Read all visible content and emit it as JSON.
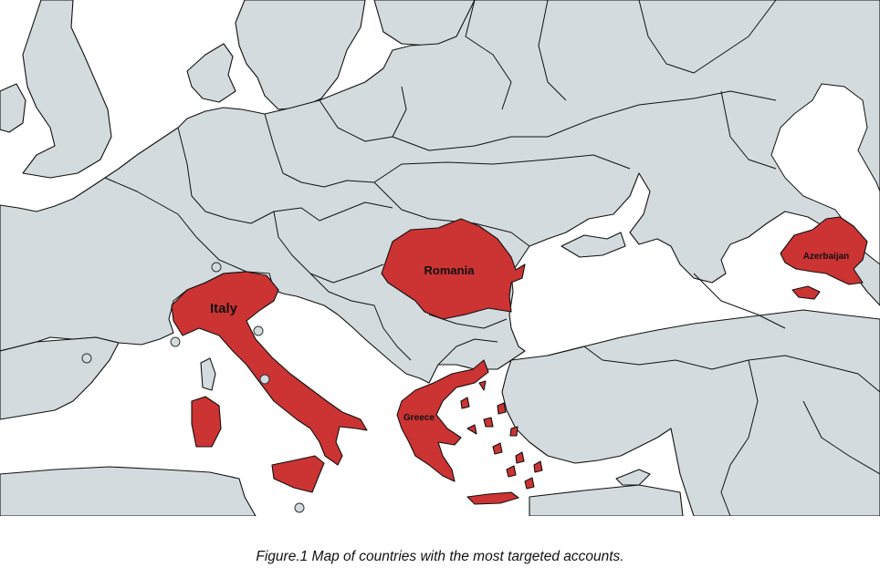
{
  "colors": {
    "land": "#d3dbdf",
    "sea": "#ffffff",
    "highlight": "#cc3333",
    "border": "#111111"
  },
  "map": {
    "highlighted_countries": [
      {
        "id": "italy",
        "label": "Italy"
      },
      {
        "id": "romania",
        "label": "Romania"
      },
      {
        "id": "greece",
        "label": "Greece"
      },
      {
        "id": "azerbaijan",
        "label": "Azerbaijan"
      }
    ]
  },
  "caption": "Figure.1 Map of countries with the most targeted accounts."
}
